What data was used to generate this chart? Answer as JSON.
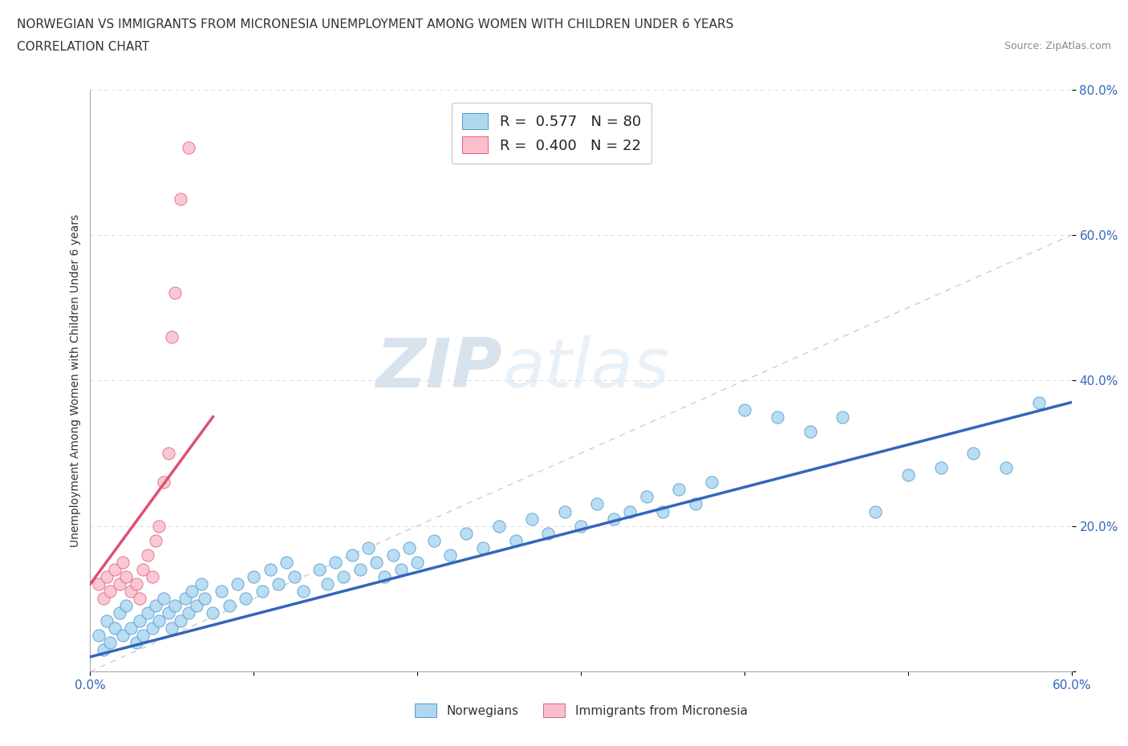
{
  "title_line1": "NORWEGIAN VS IMMIGRANTS FROM MICRONESIA UNEMPLOYMENT AMONG WOMEN WITH CHILDREN UNDER 6 YEARS",
  "title_line2": "CORRELATION CHART",
  "source": "Source: ZipAtlas.com",
  "ylabel": "Unemployment Among Women with Children Under 6 years",
  "xlim": [
    0,
    0.6
  ],
  "ylim": [
    0,
    0.8
  ],
  "norwegian_color": "#add8f0",
  "norwegian_edge_color": "#5599cc",
  "micronesia_color": "#f9c0cc",
  "micronesia_edge_color": "#e06080",
  "norwegian_line_color": "#3366bb",
  "micronesia_line_color": "#e05070",
  "diagonal_color": "#cccccc",
  "watermark_zip": "ZIP",
  "watermark_atlas": "atlas",
  "legend_R_norwegian": "0.577",
  "legend_N_norwegian": "80",
  "legend_R_micronesia": "0.400",
  "legend_N_micronesia": "22",
  "nor_trend_x0": 0.0,
  "nor_trend_y0": 0.02,
  "nor_trend_x1": 0.6,
  "nor_trend_y1": 0.37,
  "mic_trend_x0": 0.0,
  "mic_trend_y0": 0.12,
  "mic_trend_x1": 0.075,
  "mic_trend_y1": 0.35,
  "norwegian_x": [
    0.005,
    0.008,
    0.01,
    0.012,
    0.015,
    0.018,
    0.02,
    0.022,
    0.025,
    0.028,
    0.03,
    0.032,
    0.035,
    0.038,
    0.04,
    0.042,
    0.045,
    0.048,
    0.05,
    0.052,
    0.055,
    0.058,
    0.06,
    0.062,
    0.065,
    0.068,
    0.07,
    0.075,
    0.08,
    0.085,
    0.09,
    0.095,
    0.1,
    0.105,
    0.11,
    0.115,
    0.12,
    0.125,
    0.13,
    0.14,
    0.145,
    0.15,
    0.155,
    0.16,
    0.165,
    0.17,
    0.175,
    0.18,
    0.185,
    0.19,
    0.195,
    0.2,
    0.21,
    0.22,
    0.23,
    0.24,
    0.25,
    0.26,
    0.27,
    0.28,
    0.29,
    0.3,
    0.31,
    0.32,
    0.33,
    0.34,
    0.35,
    0.36,
    0.37,
    0.38,
    0.4,
    0.42,
    0.44,
    0.46,
    0.48,
    0.5,
    0.52,
    0.54,
    0.56,
    0.58
  ],
  "norwegian_y": [
    0.05,
    0.03,
    0.07,
    0.04,
    0.06,
    0.08,
    0.05,
    0.09,
    0.06,
    0.04,
    0.07,
    0.05,
    0.08,
    0.06,
    0.09,
    0.07,
    0.1,
    0.08,
    0.06,
    0.09,
    0.07,
    0.1,
    0.08,
    0.11,
    0.09,
    0.12,
    0.1,
    0.08,
    0.11,
    0.09,
    0.12,
    0.1,
    0.13,
    0.11,
    0.14,
    0.12,
    0.15,
    0.13,
    0.11,
    0.14,
    0.12,
    0.15,
    0.13,
    0.16,
    0.14,
    0.17,
    0.15,
    0.13,
    0.16,
    0.14,
    0.17,
    0.15,
    0.18,
    0.16,
    0.19,
    0.17,
    0.2,
    0.18,
    0.21,
    0.19,
    0.22,
    0.2,
    0.23,
    0.21,
    0.22,
    0.24,
    0.22,
    0.25,
    0.23,
    0.26,
    0.36,
    0.35,
    0.33,
    0.35,
    0.22,
    0.27,
    0.28,
    0.3,
    0.28,
    0.37
  ],
  "micronesia_x": [
    0.005,
    0.008,
    0.01,
    0.012,
    0.015,
    0.018,
    0.02,
    0.022,
    0.025,
    0.028,
    0.03,
    0.032,
    0.035,
    0.038,
    0.04,
    0.042,
    0.045,
    0.048,
    0.05,
    0.052,
    0.055,
    0.06
  ],
  "micronesia_y": [
    0.12,
    0.1,
    0.13,
    0.11,
    0.14,
    0.12,
    0.15,
    0.13,
    0.11,
    0.12,
    0.1,
    0.14,
    0.16,
    0.13,
    0.18,
    0.2,
    0.26,
    0.3,
    0.46,
    0.52,
    0.65,
    0.72
  ]
}
